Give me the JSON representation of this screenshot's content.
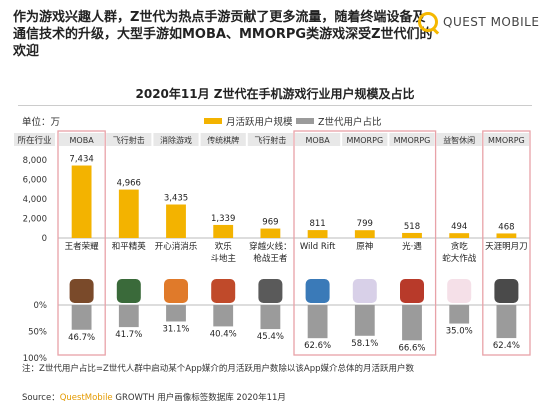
{
  "headline": "作为游戏兴趣人群，Z世代为热点手游贡献了更多流量，随着终端设备及通信技术的升级，大型手游如MOBA、MMORPG类游戏深受Z世代们的欢迎",
  "logo_text": "QUEST MOBILE",
  "unit_label": "单位：万",
  "note": "注：Z世代用户占比=Z世代人群中启动某个App媒介的月活跃用户数除以该App媒介总体的月活跃用户数",
  "source": {
    "prefix": "Source：",
    "brand": "QuestMobile",
    "rest": " GROWTH 用户画像标签数据库 2020年11月"
  },
  "colors": {
    "mau_bar": "#f3b300",
    "z_bar": "#9b9b9b",
    "highlight_box": "#e8a2a8",
    "header_fill": "#e8e8e8"
  },
  "chart_data": {
    "type": "bar",
    "title": "2020年11月 Z世代在手机游戏行业用户规模及占比",
    "category_header": "所在行业",
    "categories": [
      "王者荣耀",
      "和平精英",
      "开心消消乐",
      "欢乐斗地主",
      "穿越火线：枪战王者",
      "Wild Rift",
      "原神",
      "光·遇",
      "贪吃蛇大作战",
      "天涯明月刀"
    ],
    "category_lines": [
      [
        "王者荣耀"
      ],
      [
        "和平精英"
      ],
      [
        "开心消消乐"
      ],
      [
        "欢乐",
        "斗地主"
      ],
      [
        "穿越火线：",
        "枪战王者"
      ],
      [
        "Wild Rift"
      ],
      [
        "原神"
      ],
      [
        "光·遇"
      ],
      [
        "贪吃",
        "蛇大作战"
      ],
      [
        "天涯明月刀"
      ]
    ],
    "industries": [
      "MOBA",
      "飞行射击",
      "消除游戏",
      "传统棋牌",
      "飞行射击",
      "MOBA",
      "MMORPG",
      "MMORPG",
      "益智休闲",
      "MMORPG"
    ],
    "highlighted": [
      true,
      false,
      false,
      false,
      false,
      true,
      true,
      true,
      false,
      true
    ],
    "icon_names": [
      "king-glory-icon",
      "peace-elite-icon",
      "happy-match-icon",
      "happy-landlord-icon",
      "crossfire-icon",
      "wild-rift-icon",
      "genshin-icon",
      "sky-icon",
      "snake-icon",
      "moon-blade-icon"
    ],
    "series": [
      {
        "name": "月活跃用户规模",
        "values": [
          7434,
          4966,
          3435,
          1339,
          969,
          811,
          799,
          518,
          494,
          468
        ],
        "labels": [
          "7,434",
          "4,966",
          "3,435",
          "1,339",
          "969",
          "811",
          "799",
          "518",
          "494",
          "468"
        ]
      },
      {
        "name": "Z世代用户占比",
        "values": [
          46.7,
          41.7,
          31.1,
          40.4,
          45.4,
          62.6,
          58.1,
          66.6,
          35.0,
          62.4
        ],
        "labels": [
          "46.7%",
          "41.7%",
          "31.1%",
          "40.4%",
          "45.4%",
          "62.6%",
          "58.1%",
          "66.6%",
          "35.0%",
          "62.4%"
        ]
      }
    ],
    "y_ticks_top": [
      "8,000",
      "6,000",
      "4,000",
      "2,000",
      "0"
    ],
    "y_top_range": [
      0,
      8000
    ],
    "y_ticks_bottom": [
      "0%",
      "50%",
      "100%"
    ],
    "y_bottom_range": [
      0,
      100
    ],
    "legend_position": "top"
  }
}
